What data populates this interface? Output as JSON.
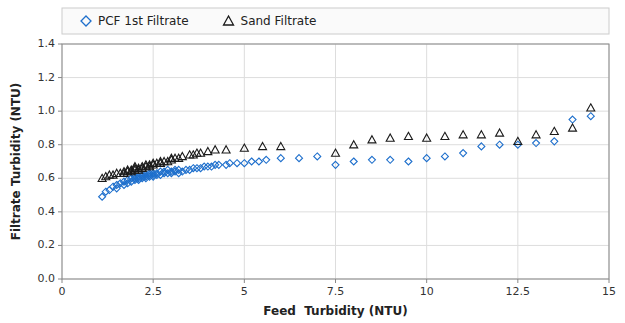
{
  "chart_data": {
    "type": "scatter",
    "xlabel": "Feed  Turbidity (NTU)",
    "ylabel": "Filtrate Turbidity (NTU)",
    "xlim": [
      0,
      15
    ],
    "ylim": [
      0,
      1.4
    ],
    "xticks": [
      0,
      2.5,
      5,
      7.5,
      10,
      12.5,
      15
    ],
    "yticks": [
      {
        "value": 0,
        "label": "0.0"
      },
      0.2,
      0.4,
      0.6,
      0.8,
      {
        "value": 1,
        "label": "1.0"
      },
      1.2,
      1.4
    ],
    "grid": true,
    "legend": "top",
    "series": [
      {
        "name": "PCF 1st Filtrate",
        "color": "#1e6fcc",
        "marker": "diamond",
        "x": [
          1.1,
          1.2,
          1.3,
          1.4,
          1.5,
          1.5,
          1.6,
          1.7,
          1.7,
          1.8,
          1.8,
          1.9,
          1.9,
          2.0,
          2.0,
          2.0,
          2.1,
          2.1,
          2.1,
          2.2,
          2.2,
          2.2,
          2.3,
          2.3,
          2.3,
          2.4,
          2.4,
          2.4,
          2.5,
          2.5,
          2.5,
          2.6,
          2.6,
          2.7,
          2.7,
          2.8,
          2.8,
          2.9,
          2.9,
          3.0,
          3.0,
          3.1,
          3.1,
          3.2,
          3.2,
          3.3,
          3.4,
          3.5,
          3.6,
          3.7,
          3.8,
          3.9,
          4.0,
          4.1,
          4.2,
          4.3,
          4.5,
          4.6,
          4.8,
          5.0,
          5.2,
          5.4,
          5.6,
          6.0,
          6.5,
          7.0,
          7.5,
          8.0,
          8.5,
          9.0,
          9.5,
          10.0,
          10.5,
          11.0,
          11.5,
          12.0,
          12.5,
          13.0,
          13.5,
          14.0,
          14.5
        ],
        "values": [
          0.49,
          0.52,
          0.53,
          0.55,
          0.54,
          0.56,
          0.57,
          0.56,
          0.58,
          0.57,
          0.59,
          0.58,
          0.6,
          0.59,
          0.6,
          0.61,
          0.59,
          0.6,
          0.61,
          0.6,
          0.61,
          0.62,
          0.6,
          0.61,
          0.62,
          0.61,
          0.62,
          0.63,
          0.61,
          0.62,
          0.63,
          0.62,
          0.63,
          0.62,
          0.64,
          0.63,
          0.64,
          0.63,
          0.65,
          0.63,
          0.64,
          0.64,
          0.65,
          0.63,
          0.65,
          0.64,
          0.65,
          0.65,
          0.66,
          0.66,
          0.66,
          0.67,
          0.67,
          0.67,
          0.68,
          0.68,
          0.68,
          0.69,
          0.69,
          0.69,
          0.7,
          0.7,
          0.71,
          0.72,
          0.72,
          0.73,
          0.68,
          0.7,
          0.71,
          0.71,
          0.7,
          0.72,
          0.73,
          0.75,
          0.79,
          0.8,
          0.8,
          0.81,
          0.82,
          0.95,
          0.97
        ]
      },
      {
        "name": "Sand Filtrate",
        "color": "#1a1a1a",
        "marker": "triangle",
        "x": [
          1.1,
          1.2,
          1.3,
          1.4,
          1.5,
          1.6,
          1.7,
          1.7,
          1.8,
          1.8,
          1.9,
          1.9,
          2.0,
          2.0,
          2.0,
          2.1,
          2.1,
          2.2,
          2.2,
          2.3,
          2.3,
          2.4,
          2.4,
          2.5,
          2.5,
          2.6,
          2.7,
          2.7,
          2.8,
          2.9,
          3.0,
          3.0,
          3.1,
          3.2,
          3.3,
          3.5,
          3.6,
          3.7,
          3.8,
          4.0,
          4.2,
          4.5,
          5.0,
          5.5,
          6.0,
          7.5,
          8.0,
          8.5,
          9.0,
          9.5,
          10.0,
          10.5,
          11.0,
          11.5,
          12.0,
          12.5,
          13.0,
          13.5,
          14.0,
          14.5
        ],
        "values": [
          0.6,
          0.61,
          0.62,
          0.62,
          0.63,
          0.63,
          0.63,
          0.64,
          0.64,
          0.65,
          0.64,
          0.65,
          0.65,
          0.66,
          0.67,
          0.65,
          0.66,
          0.66,
          0.67,
          0.67,
          0.68,
          0.67,
          0.68,
          0.68,
          0.69,
          0.69,
          0.69,
          0.7,
          0.7,
          0.7,
          0.71,
          0.72,
          0.72,
          0.72,
          0.73,
          0.74,
          0.74,
          0.75,
          0.75,
          0.76,
          0.77,
          0.77,
          0.78,
          0.79,
          0.79,
          0.75,
          0.8,
          0.83,
          0.84,
          0.85,
          0.84,
          0.85,
          0.86,
          0.86,
          0.87,
          0.82,
          0.86,
          0.88,
          0.9,
          1.02
        ]
      }
    ]
  }
}
